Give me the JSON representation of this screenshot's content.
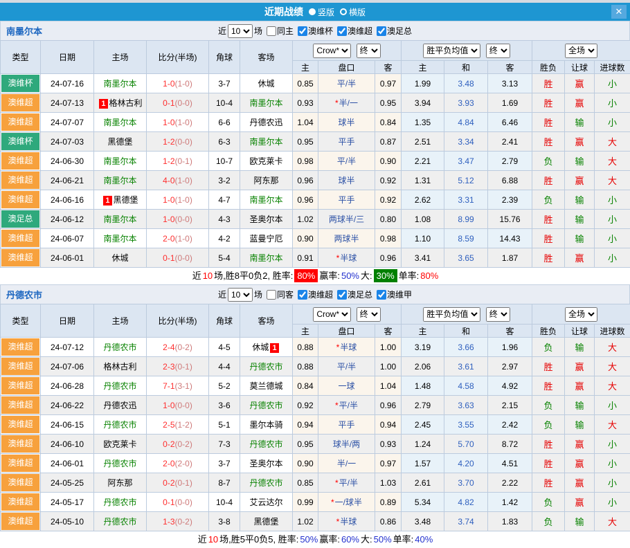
{
  "titlebar": {
    "title": "近期战绩",
    "options": [
      {
        "label": "竖版",
        "selected": true
      },
      {
        "label": "横版",
        "selected": false
      }
    ],
    "close_glyph": "✕"
  },
  "table_header": {
    "left_cols": [
      "类型",
      "日期",
      "主场",
      "比分(半场)",
      "角球",
      "客场"
    ],
    "odds_company_dropdown": "Crow*",
    "odds_time_dropdown": "终",
    "avg_dropdown": "胜平负均值",
    "avg_time_dropdown": "终",
    "scope_dropdown": "全场",
    "sub_cols": [
      "主",
      "盘口",
      "客",
      "主",
      "和",
      "客",
      "胜负",
      "让球",
      "进球数"
    ]
  },
  "colors": {
    "type_colors": {
      "澳维超": "#F7A13D",
      "澳维杯": "#2FA97C",
      "澳足总": "#2FA97C"
    },
    "result_colors": {
      "胜": "#E60000",
      "赢": "#E60000",
      "大": "#E60000",
      "负": "#088200",
      "输": "#088200",
      "小": "#088200"
    },
    "titlebar_blue": "#1E96D2",
    "focus_team_green": "#088200"
  },
  "sections": [
    {
      "team": "南墨尔本",
      "filter": {
        "prefix": "近",
        "games": "10",
        "suffix": "场",
        "same": {
          "label": "同主",
          "checked": false
        },
        "leagues": [
          {
            "label": "澳维杯",
            "checked": true
          },
          {
            "label": "澳维超",
            "checked": true
          },
          {
            "label": "澳足总",
            "checked": true
          }
        ]
      },
      "rows": [
        {
          "type": "澳维杯",
          "date": "24-07-16",
          "home": {
            "name": "南墨尔本",
            "focus": true
          },
          "score": {
            "ft": "1-0",
            "ht": "(1-0)"
          },
          "corner": "3-7",
          "away": {
            "name": "休城"
          },
          "odds": [
            "0.85",
            {
              "text": "平/半"
            },
            "0.97"
          ],
          "avg": [
            "1.99",
            "3.48",
            "3.13"
          ],
          "res": [
            "胜",
            "赢",
            "小"
          ]
        },
        {
          "type": "澳维超",
          "date": "24-07-13",
          "home": {
            "name": "格林古利",
            "badge": "1"
          },
          "score": {
            "ft": "0-1",
            "ht": "(0-0)"
          },
          "corner": "10-4",
          "away": {
            "name": "南墨尔本",
            "focus": true
          },
          "odds": [
            "0.93",
            {
              "text": "半/一",
              "star": true
            },
            "0.95"
          ],
          "avg": [
            "3.94",
            "3.93",
            "1.69"
          ],
          "res": [
            "胜",
            "赢",
            "小"
          ]
        },
        {
          "type": "澳维超",
          "date": "24-07-07",
          "home": {
            "name": "南墨尔本",
            "focus": true
          },
          "score": {
            "ft": "1-0",
            "ht": "(1-0)"
          },
          "corner": "6-6",
          "away": {
            "name": "丹德农迅"
          },
          "odds": [
            "1.04",
            {
              "text": "球半"
            },
            "0.84"
          ],
          "avg": [
            "1.35",
            "4.84",
            "6.46"
          ],
          "res": [
            "胜",
            "输",
            "小"
          ]
        },
        {
          "type": "澳维杯",
          "date": "24-07-03",
          "home": {
            "name": "黑德堡"
          },
          "score": {
            "ft": "1-2",
            "ht": "(0-0)"
          },
          "corner": "6-3",
          "away": {
            "name": "南墨尔本",
            "focus": true
          },
          "odds": [
            "0.95",
            {
              "text": "平手"
            },
            "0.87"
          ],
          "avg": [
            "2.51",
            "3.34",
            "2.41"
          ],
          "res": [
            "胜",
            "赢",
            "大"
          ]
        },
        {
          "type": "澳维超",
          "date": "24-06-30",
          "home": {
            "name": "南墨尔本",
            "focus": true
          },
          "score": {
            "ft": "1-2",
            "ht": "(0-1)"
          },
          "corner": "10-7",
          "away": {
            "name": "欧克莱卡"
          },
          "odds": [
            "0.98",
            {
              "text": "平/半"
            },
            "0.90"
          ],
          "avg": [
            "2.21",
            "3.47",
            "2.79"
          ],
          "res": [
            "负",
            "输",
            "大"
          ]
        },
        {
          "type": "澳维超",
          "date": "24-06-21",
          "home": {
            "name": "南墨尔本",
            "focus": true
          },
          "score": {
            "ft": "4-0",
            "ht": "(1-0)"
          },
          "corner": "3-2",
          "away": {
            "name": "阿东那"
          },
          "odds": [
            "0.96",
            {
              "text": "球半"
            },
            "0.92"
          ],
          "avg": [
            "1.31",
            "5.12",
            "6.88"
          ],
          "res": [
            "胜",
            "赢",
            "大"
          ]
        },
        {
          "type": "澳维超",
          "date": "24-06-16",
          "home": {
            "name": "黑德堡",
            "badge": "1"
          },
          "score": {
            "ft": "1-0",
            "ht": "(1-0)"
          },
          "corner": "4-7",
          "away": {
            "name": "南墨尔本",
            "focus": true
          },
          "odds": [
            "0.96",
            {
              "text": "平手"
            },
            "0.92"
          ],
          "avg": [
            "2.62",
            "3.31",
            "2.39"
          ],
          "res": [
            "负",
            "输",
            "小"
          ]
        },
        {
          "type": "澳足总",
          "date": "24-06-12",
          "home": {
            "name": "南墨尔本",
            "focus": true
          },
          "score": {
            "ft": "1-0",
            "ht": "(0-0)"
          },
          "corner": "4-3",
          "away": {
            "name": "圣奥尔本"
          },
          "odds": [
            "1.02",
            {
              "text": "两球半/三"
            },
            "0.80"
          ],
          "avg": [
            "1.08",
            "8.99",
            "15.76"
          ],
          "res": [
            "胜",
            "输",
            "小"
          ]
        },
        {
          "type": "澳维超",
          "date": "24-06-07",
          "home": {
            "name": "南墨尔本",
            "focus": true
          },
          "score": {
            "ft": "2-0",
            "ht": "(1-0)"
          },
          "corner": "4-2",
          "away": {
            "name": "蓝曼宁厄"
          },
          "odds": [
            "0.90",
            {
              "text": "两球半"
            },
            "0.98"
          ],
          "avg": [
            "1.10",
            "8.59",
            "14.43"
          ],
          "res": [
            "胜",
            "输",
            "小"
          ]
        },
        {
          "type": "澳维超",
          "date": "24-06-01",
          "home": {
            "name": "休城"
          },
          "score": {
            "ft": "0-1",
            "ht": "(0-0)"
          },
          "corner": "5-4",
          "away": {
            "name": "南墨尔本",
            "focus": true
          },
          "odds": [
            "0.91",
            {
              "text": "半球",
              "star": true
            },
            "0.96"
          ],
          "avg": [
            "3.41",
            "3.65",
            "1.87"
          ],
          "res": [
            "胜",
            "赢",
            "小"
          ]
        }
      ],
      "summary": [
        {
          "t": "近",
          "s": "p"
        },
        {
          "t": "10",
          "s": "r"
        },
        {
          "t": "场,胜8平0负2, 胜率:",
          "s": "p"
        },
        {
          "t": "80%",
          "s": "rb"
        },
        {
          "t": "赢率:",
          "s": "p"
        },
        {
          "t": "50%",
          "s": "b"
        },
        {
          "t": "大:",
          "s": "p"
        },
        {
          "t": "30%",
          "s": "gb"
        },
        {
          "t": "单率:",
          "s": "p"
        },
        {
          "t": "80%",
          "s": "r"
        }
      ]
    },
    {
      "team": "丹德农市",
      "filter": {
        "prefix": "近",
        "games": "10",
        "suffix": "场",
        "same": {
          "label": "同客",
          "checked": false
        },
        "leagues": [
          {
            "label": "澳维超",
            "checked": true
          },
          {
            "label": "澳足总",
            "checked": true
          },
          {
            "label": "澳维甲",
            "checked": true
          }
        ]
      },
      "rows": [
        {
          "type": "澳维超",
          "date": "24-07-12",
          "home": {
            "name": "丹德农市",
            "focus": true
          },
          "score": {
            "ft": "2-4",
            "ht": "(0-2)"
          },
          "corner": "4-5",
          "away": {
            "name": "休城",
            "badge_after": "1"
          },
          "odds": [
            "0.88",
            {
              "text": "半球",
              "star": true
            },
            "1.00"
          ],
          "avg": [
            "3.19",
            "3.66",
            "1.96"
          ],
          "res": [
            "负",
            "输",
            "大"
          ]
        },
        {
          "type": "澳维超",
          "date": "24-07-06",
          "home": {
            "name": "格林古利"
          },
          "score": {
            "ft": "2-3",
            "ht": "(0-1)"
          },
          "corner": "4-4",
          "away": {
            "name": "丹德农市",
            "focus": true
          },
          "odds": [
            "0.88",
            {
              "text": "平/半"
            },
            "1.00"
          ],
          "avg": [
            "2.06",
            "3.61",
            "2.97"
          ],
          "res": [
            "胜",
            "赢",
            "大"
          ]
        },
        {
          "type": "澳维超",
          "date": "24-06-28",
          "home": {
            "name": "丹德农市",
            "focus": true
          },
          "score": {
            "ft": "7-1",
            "ht": "(3-1)"
          },
          "corner": "5-2",
          "away": {
            "name": "莫兰德城"
          },
          "odds": [
            "0.84",
            {
              "text": "一球"
            },
            "1.04"
          ],
          "avg": [
            "1.48",
            "4.58",
            "4.92"
          ],
          "res": [
            "胜",
            "赢",
            "大"
          ]
        },
        {
          "type": "澳维超",
          "date": "24-06-22",
          "home": {
            "name": "丹德农迅"
          },
          "score": {
            "ft": "1-0",
            "ht": "(0-0)"
          },
          "corner": "3-6",
          "away": {
            "name": "丹德农市",
            "focus": true
          },
          "odds": [
            "0.92",
            {
              "text": "平/半",
              "star": true
            },
            "0.96"
          ],
          "avg": [
            "2.79",
            "3.63",
            "2.15"
          ],
          "res": [
            "负",
            "输",
            "小"
          ]
        },
        {
          "type": "澳维超",
          "date": "24-06-15",
          "home": {
            "name": "丹德农市",
            "focus": true
          },
          "score": {
            "ft": "2-5",
            "ht": "(1-2)"
          },
          "corner": "5-1",
          "away": {
            "name": "墨尔本骑"
          },
          "odds": [
            "0.94",
            {
              "text": "平手"
            },
            "0.94"
          ],
          "avg": [
            "2.45",
            "3.55",
            "2.42"
          ],
          "res": [
            "负",
            "输",
            "大"
          ]
        },
        {
          "type": "澳维超",
          "date": "24-06-10",
          "home": {
            "name": "欧克莱卡"
          },
          "score": {
            "ft": "0-2",
            "ht": "(0-2)"
          },
          "corner": "7-3",
          "away": {
            "name": "丹德农市",
            "focus": true
          },
          "odds": [
            "0.95",
            {
              "text": "球半/两"
            },
            "0.93"
          ],
          "avg": [
            "1.24",
            "5.70",
            "8.72"
          ],
          "res": [
            "胜",
            "赢",
            "小"
          ]
        },
        {
          "type": "澳维超",
          "date": "24-06-01",
          "home": {
            "name": "丹德农市",
            "focus": true
          },
          "score": {
            "ft": "2-0",
            "ht": "(2-0)"
          },
          "corner": "3-7",
          "away": {
            "name": "圣奥尔本"
          },
          "odds": [
            "0.90",
            {
              "text": "半/一"
            },
            "0.97"
          ],
          "avg": [
            "1.57",
            "4.20",
            "4.51"
          ],
          "res": [
            "胜",
            "赢",
            "小"
          ]
        },
        {
          "type": "澳维超",
          "date": "24-05-25",
          "home": {
            "name": "阿东那"
          },
          "score": {
            "ft": "0-2",
            "ht": "(0-1)"
          },
          "corner": "8-7",
          "away": {
            "name": "丹德农市",
            "focus": true
          },
          "odds": [
            "0.85",
            {
              "text": "平/半",
              "star": true
            },
            "1.03"
          ],
          "avg": [
            "2.61",
            "3.70",
            "2.22"
          ],
          "res": [
            "胜",
            "赢",
            "小"
          ]
        },
        {
          "type": "澳维超",
          "date": "24-05-17",
          "home": {
            "name": "丹德农市",
            "focus": true
          },
          "score": {
            "ft": "0-1",
            "ht": "(0-0)"
          },
          "corner": "10-4",
          "away": {
            "name": "艾云达尔"
          },
          "odds": [
            "0.99",
            {
              "text": "一/球半",
              "star": true
            },
            "0.89"
          ],
          "avg": [
            "5.34",
            "4.82",
            "1.42"
          ],
          "res": [
            "负",
            "赢",
            "小"
          ]
        },
        {
          "type": "澳维超",
          "date": "24-05-10",
          "home": {
            "name": "丹德农市",
            "focus": true
          },
          "score": {
            "ft": "1-3",
            "ht": "(0-2)"
          },
          "corner": "3-8",
          "away": {
            "name": "黑德堡"
          },
          "odds": [
            "1.02",
            {
              "text": "半球",
              "star": true
            },
            "0.86"
          ],
          "avg": [
            "3.48",
            "3.74",
            "1.83"
          ],
          "res": [
            "负",
            "输",
            "大"
          ]
        }
      ],
      "summary": [
        {
          "t": "近",
          "s": "p"
        },
        {
          "t": "10",
          "s": "r"
        },
        {
          "t": "场,胜5平0负5, 胜率:",
          "s": "p"
        },
        {
          "t": "50%",
          "s": "b"
        },
        {
          "t": "赢率:",
          "s": "p"
        },
        {
          "t": "60%",
          "s": "b"
        },
        {
          "t": "大:",
          "s": "p"
        },
        {
          "t": "50%",
          "s": "b"
        },
        {
          "t": "单率:",
          "s": "p"
        },
        {
          "t": "40%",
          "s": "b"
        }
      ]
    }
  ]
}
